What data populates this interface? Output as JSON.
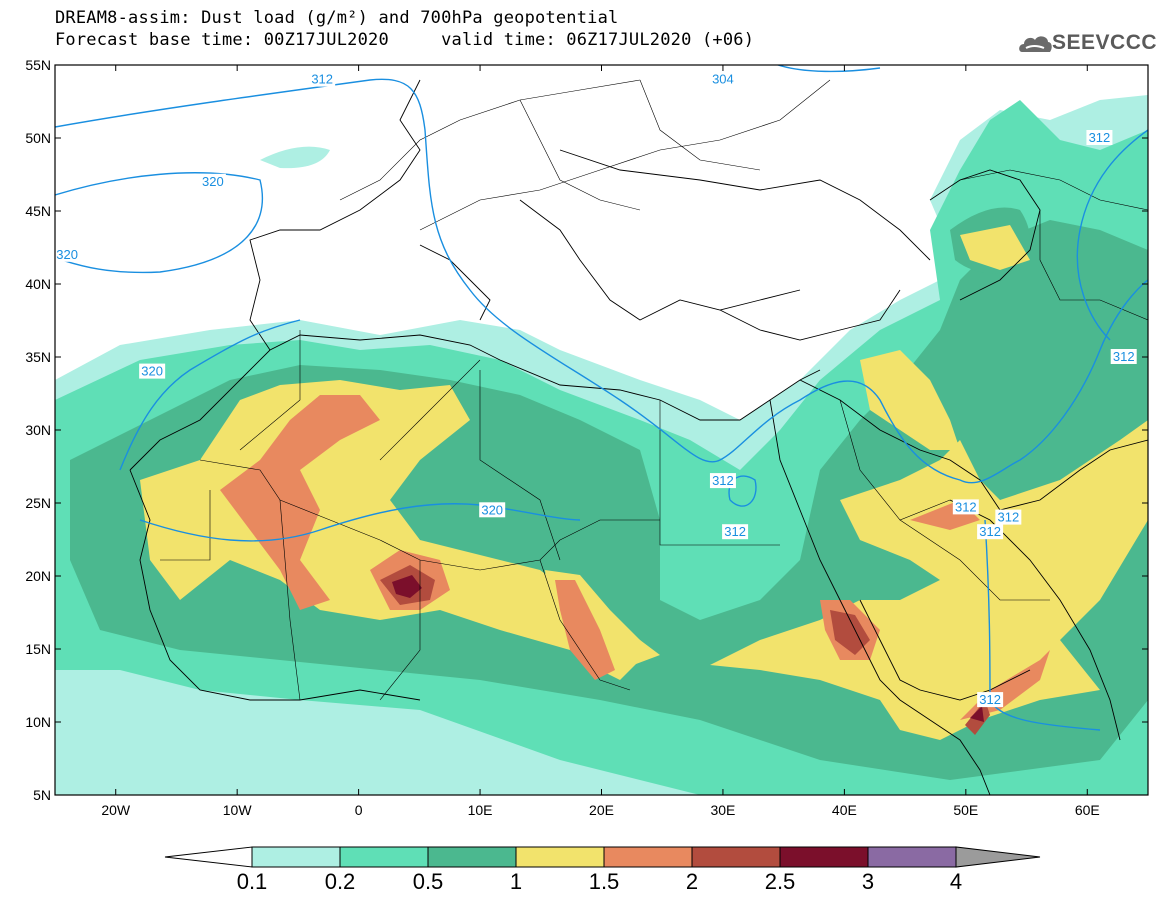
{
  "header": {
    "line1": "DREAM8-assim: Dust load (g/m²) and 700hPa geopotential",
    "line2": "Forecast base time: 00Z17JUL2020     valid time: 06Z17JUL2020 (+06)"
  },
  "logo": {
    "text": "SEEVCCC",
    "icon": "cloud-icon"
  },
  "map": {
    "lat_labels": [
      "55N",
      "50N",
      "45N",
      "40N",
      "35N",
      "30N",
      "25N",
      "20N",
      "15N",
      "10N",
      "5N"
    ],
    "lon_labels": [
      "20W",
      "10W",
      "0",
      "10E",
      "20E",
      "30E",
      "40E",
      "50E",
      "60E"
    ],
    "lon_range": [
      -25,
      65
    ],
    "lat_range": [
      5,
      55
    ],
    "contour_labels": [
      {
        "text": "312",
        "lon": -3,
        "lat": 54
      },
      {
        "text": "304",
        "lon": 30,
        "lat": 54
      },
      {
        "text": "320",
        "lon": -12,
        "lat": 47
      },
      {
        "text": "320",
        "lon": -24,
        "lat": 42
      },
      {
        "text": "320",
        "lon": -17,
        "lat": 34
      },
      {
        "text": "312",
        "lon": 61,
        "lat": 50
      },
      {
        "text": "312",
        "lon": 30,
        "lat": 26.5
      },
      {
        "text": "312",
        "lon": 31,
        "lat": 23
      },
      {
        "text": "320",
        "lon": 11,
        "lat": 24.5
      },
      {
        "text": "312",
        "lon": 50,
        "lat": 24.7
      },
      {
        "text": "312",
        "lon": 52,
        "lat": 23
      },
      {
        "text": "312",
        "lon": 53.5,
        "lat": 24
      },
      {
        "text": "312",
        "lon": 63,
        "lat": 35
      },
      {
        "text": "312",
        "lon": 52,
        "lat": 11.5
      }
    ]
  },
  "colorbar": {
    "labels": [
      "0.1",
      "0.2",
      "0.5",
      "1",
      "1.5",
      "2",
      "2.5",
      "3",
      "4"
    ],
    "colors": [
      "#aeefe3",
      "#5fdfb6",
      "#4bb88f",
      "#f2e36c",
      "#e8895f",
      "#b24c3e",
      "#7b0f2b",
      "#8a6aa3",
      "#9b9b9b"
    ]
  }
}
